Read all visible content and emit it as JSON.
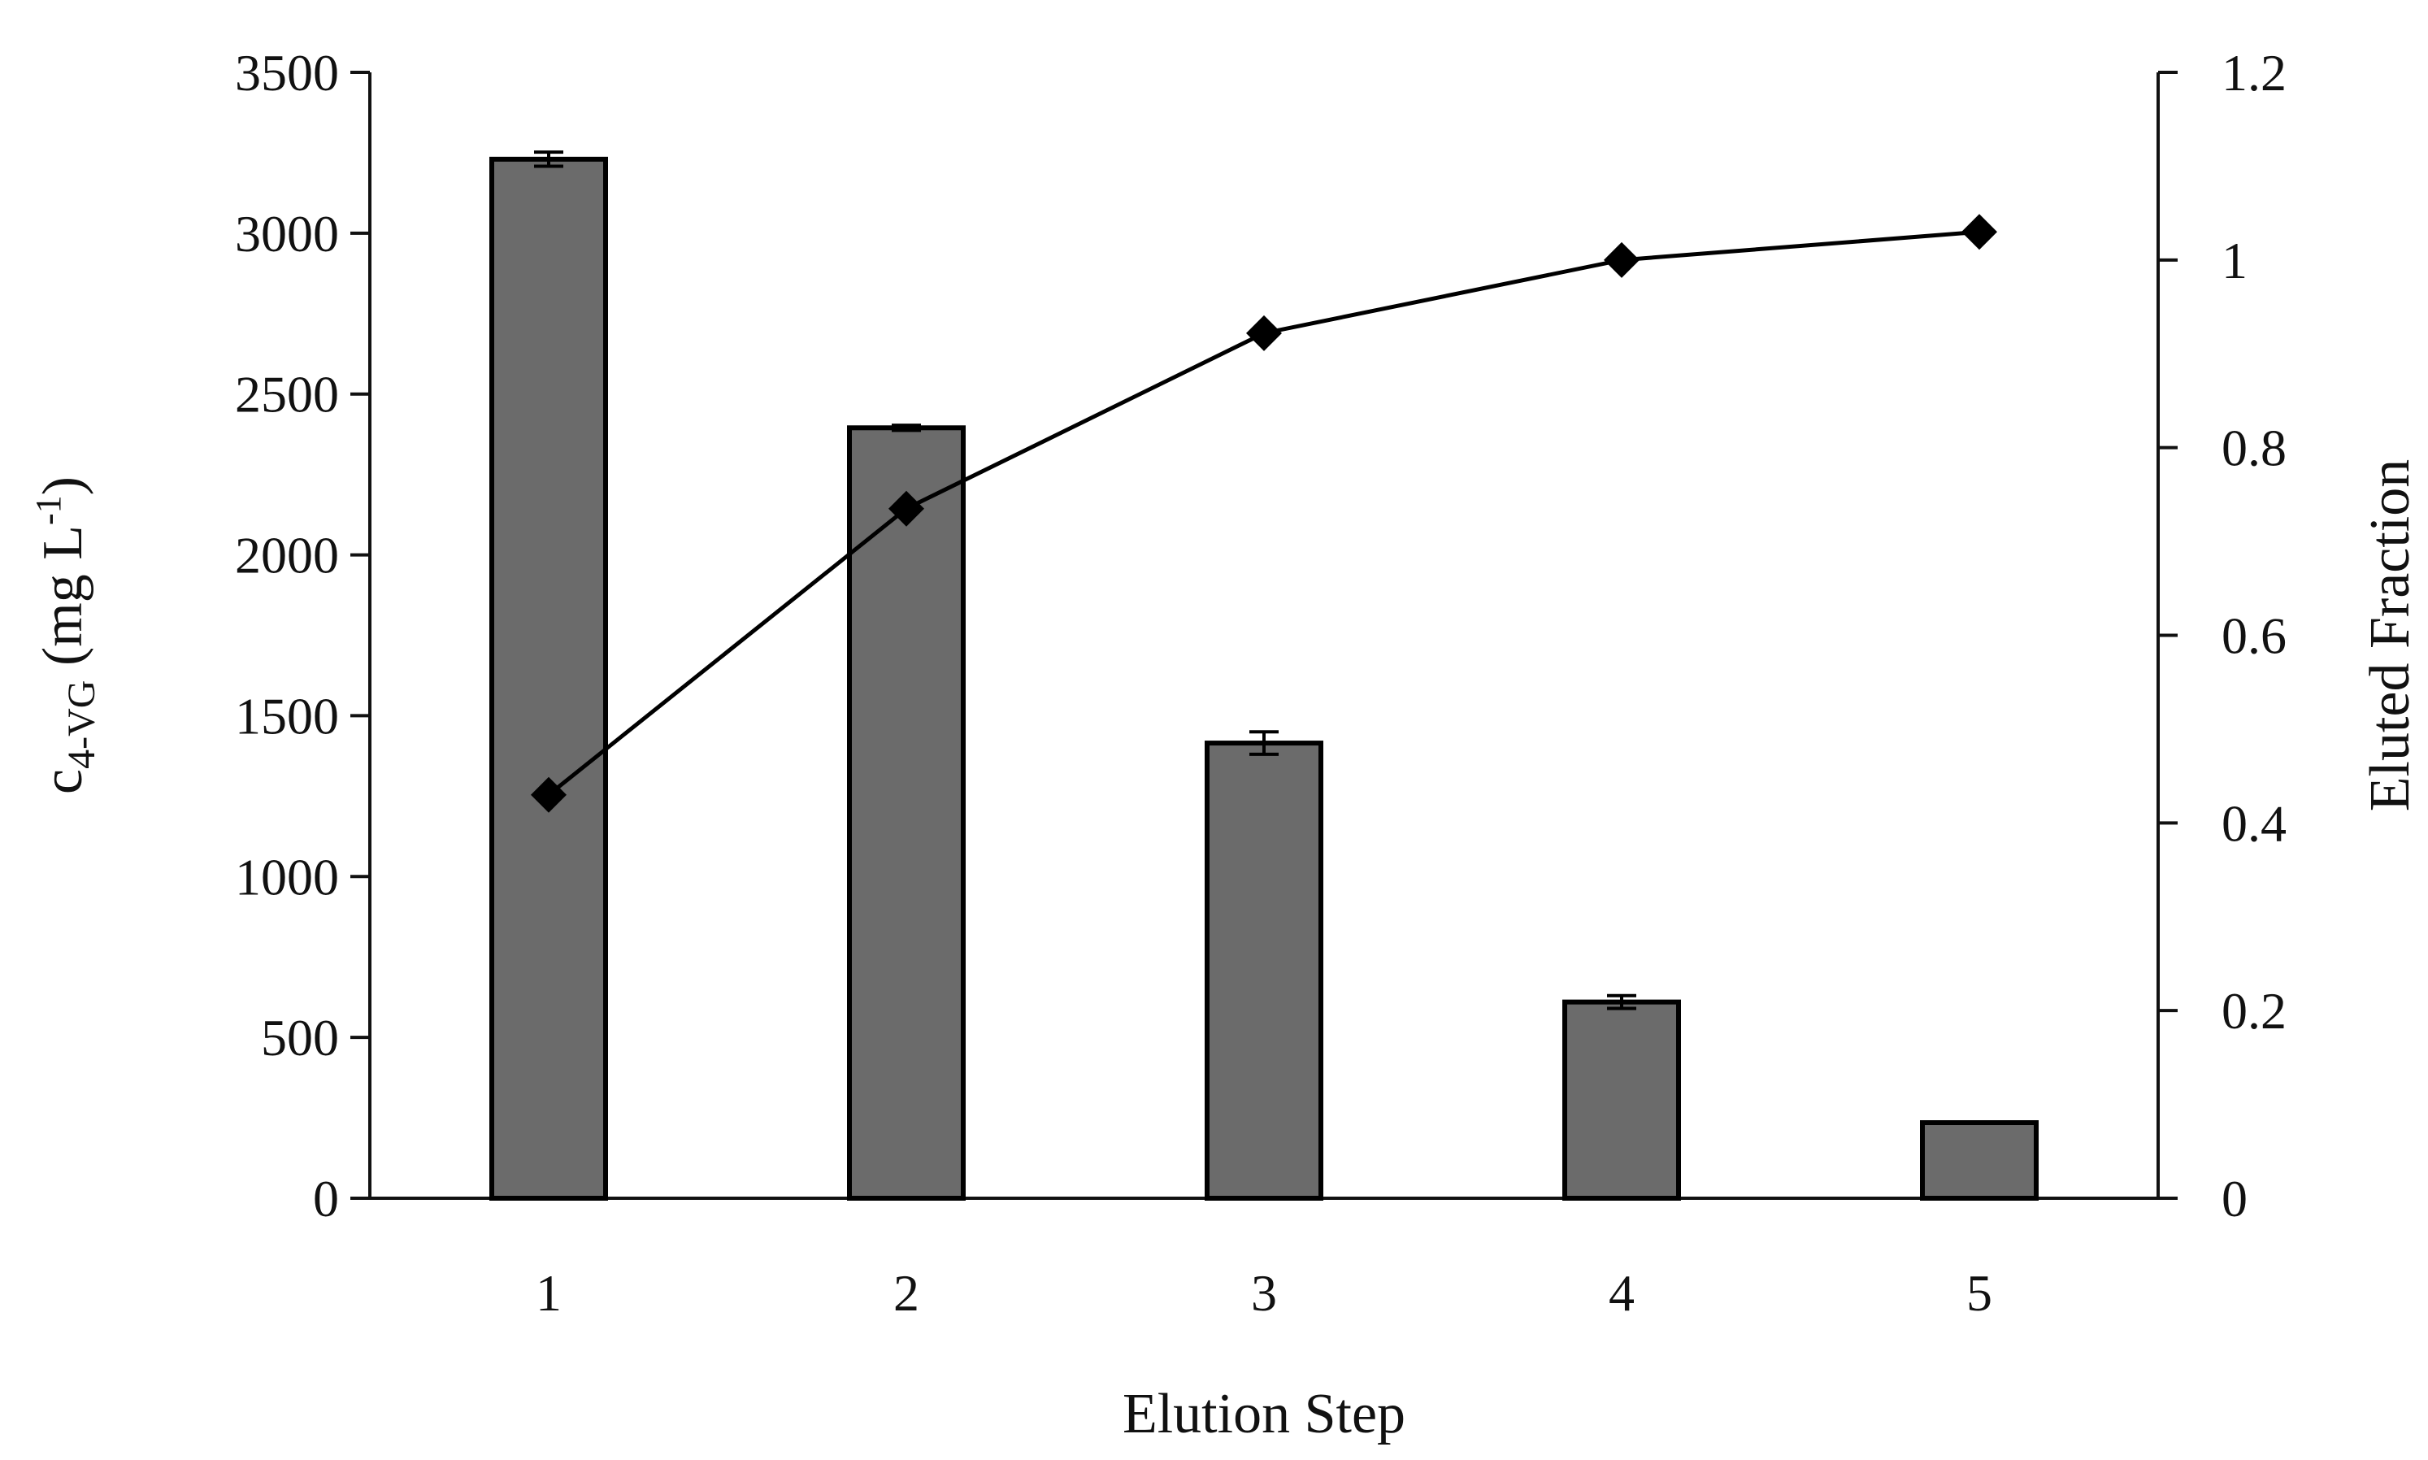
{
  "chart_data": {
    "type": "bar",
    "categories": [
      "1",
      "2",
      "3",
      "4",
      "5"
    ],
    "xlabel": "Elution Step",
    "ylabel": {
      "base": "c",
      "subscript": "4-VG",
      "unit_open": " (mg L",
      "unit_sup": "-1",
      "unit_close": ")"
    },
    "y2label": "Eluted Fraction",
    "ylim": [
      0,
      3500
    ],
    "y_ticks": [
      "0",
      "500",
      "1000",
      "1500",
      "2000",
      "2500",
      "3000",
      "3500"
    ],
    "y2lim": [
      0,
      1.2
    ],
    "y2_ticks": [
      "0",
      "0.2",
      "0.4",
      "0.6",
      "0.8",
      "1",
      "1.2"
    ],
    "grid": false,
    "series": [
      {
        "type": "bar",
        "axis": "left",
        "values": [
          3230,
          2395,
          1415,
          610,
          235
        ],
        "errors": [
          22,
          8,
          35,
          20,
          0
        ],
        "color": "#6b6b6b"
      },
      {
        "type": "line",
        "axis": "right",
        "marker": "diamond",
        "values": [
          0.43,
          0.735,
          0.922,
          1.0,
          1.03
        ],
        "color": "#000000"
      }
    ]
  }
}
